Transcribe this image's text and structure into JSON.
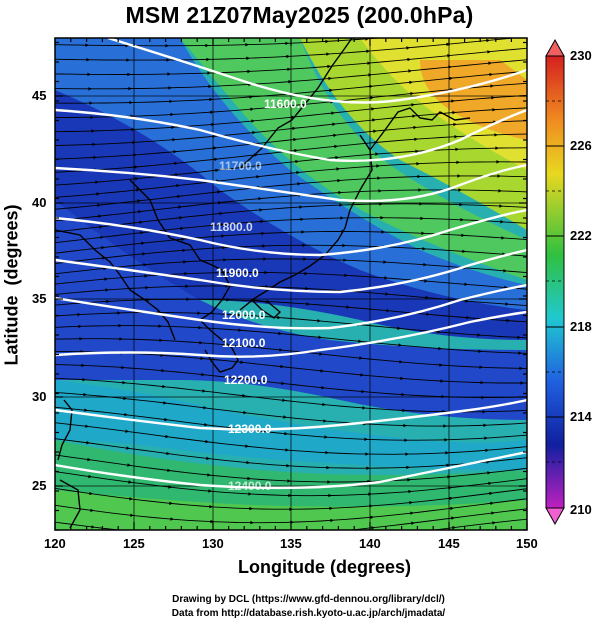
{
  "title": "MSM 21Z07May2025 (200.0hPa)",
  "x_axis": {
    "label": "Longitude (degrees)",
    "ticks": [
      "120",
      "125",
      "130",
      "135",
      "140",
      "145",
      "150"
    ],
    "range": [
      120,
      150
    ]
  },
  "y_axis": {
    "label": "Latitude  (degrees)",
    "ticks": [
      "25",
      "30",
      "35",
      "40",
      "45"
    ],
    "range": [
      22.5,
      48
    ]
  },
  "colorbar": {
    "min": 210,
    "max": 230,
    "labels": [
      "230",
      "226",
      "222",
      "218",
      "214",
      "210"
    ],
    "colors": {
      "top": "#d42020",
      "orange": "#f08a20",
      "yellow": "#e8d820",
      "green": "#30c040",
      "cyan": "#20c8d0",
      "blue": "#2060e0",
      "darkblue": "#1020a0",
      "magenta": "#c020c0",
      "bottom": "#e050d0"
    }
  },
  "contours": [
    {
      "label": "11600.0"
    },
    {
      "label": "11700.0"
    },
    {
      "label": "11800.0"
    },
    {
      "label": "11900.0"
    },
    {
      "label": "12000.0"
    },
    {
      "label": "12100.0"
    },
    {
      "label": "12200.0"
    },
    {
      "label": "12300.0"
    },
    {
      "label": "12400.0"
    }
  ],
  "footer": {
    "line1": "Drawing by DCL (https://www.gfd-dennou.org/library/dcl/)",
    "line2": "Data from http://database.rish.kyoto-u.ac.jp/arch/jmadata/"
  }
}
